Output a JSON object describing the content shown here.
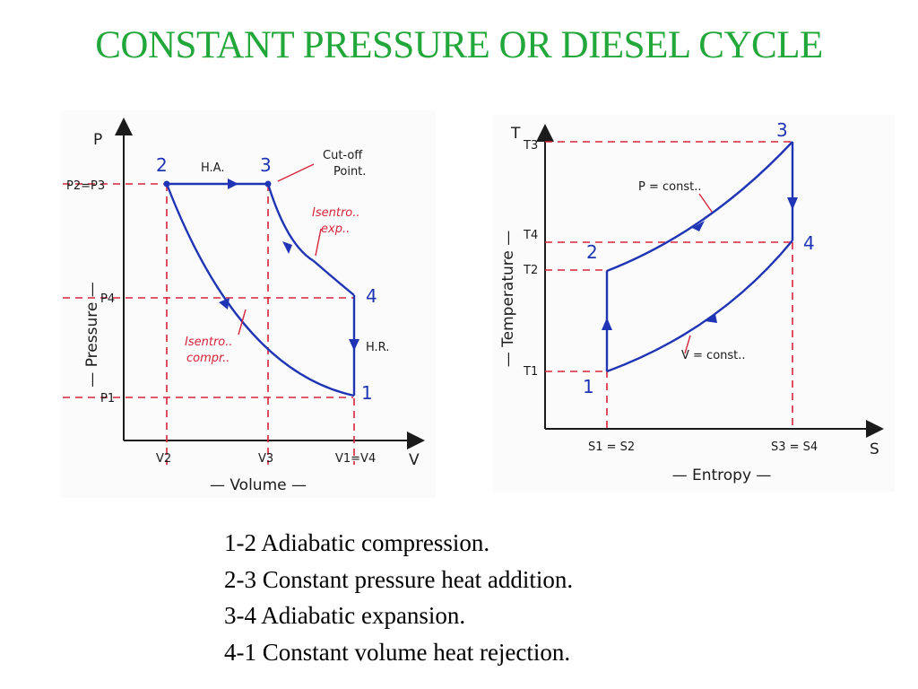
{
  "slide": {
    "title": "CONSTANT PRESSURE OR DIESEL CYCLE"
  },
  "pv": {
    "y_axis_letter": "P",
    "x_axis_letter": "V",
    "y_axis_label": "— Pressure —",
    "x_axis_label": "— Volume —",
    "y_ticks": [
      "P2=P3",
      "P4",
      "P1"
    ],
    "x_ticks": [
      "V2",
      "V3",
      "V1=V4"
    ],
    "points": [
      "1",
      "2",
      "3",
      "4"
    ],
    "annotations": {
      "heat_addition": "H.A.",
      "heat_rejection": "H.R.",
      "cutoff_line1": "Cut-off",
      "cutoff_line2": "Point.",
      "isentro_exp_line1": "Isentro..",
      "isentro_exp_line2": "exp..",
      "isentro_comp_line1": "Isentro..",
      "isentro_comp_line2": "compr.."
    }
  },
  "ts": {
    "y_axis_letter": "T",
    "x_axis_letter": "S",
    "y_axis_label": "— Temperature —",
    "x_axis_label": "— Entropy —",
    "y_ticks": [
      "T3",
      "T4",
      "T2",
      "T1"
    ],
    "x_ticks": [
      "S1 = S2",
      "S3 = S4"
    ],
    "points": [
      "1",
      "2",
      "3",
      "4"
    ],
    "annotations": {
      "p_const": "P = const..",
      "v_const": "V = const.."
    }
  },
  "legend": {
    "lines": [
      "1-2 Adiabatic compression.",
      "2-3 Constant pressure heat addition.",
      "3-4 Adiabatic expansion.",
      "4-1 Constant volume heat rejection."
    ]
  },
  "colors": {
    "title": "#22a83a",
    "curve": "#1f35b5",
    "dashed": "#d8243a",
    "axis": "#1b1b1b"
  }
}
